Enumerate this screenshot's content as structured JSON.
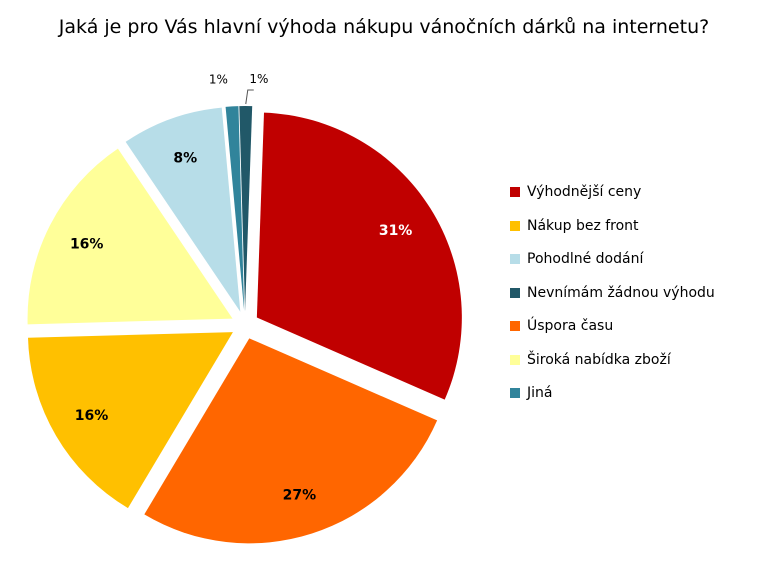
{
  "chart_data": {
    "type": "pie",
    "title": "Jaká je pro Vás hlavní výhoda nákupu vánočních dárků na internetu?",
    "unit": "%",
    "slices": [
      {
        "name": "Výhodnější ceny",
        "value": 31,
        "label": "31%",
        "color": "#C00000"
      },
      {
        "name": "Úspora času",
        "value": 27,
        "label": "27%",
        "color": "#FF6600"
      },
      {
        "name": "Nákup bez front",
        "value": 16,
        "label": "16%",
        "color": "#FFC000"
      },
      {
        "name": "Široká nabídka zboží",
        "value": 16,
        "label": "16%",
        "color": "#FFFF99"
      },
      {
        "name": "Pohodlné dodání",
        "value": 8,
        "label": "8%",
        "color": "#B7DDE8"
      },
      {
        "name": "Jiná",
        "value": 1,
        "label": "1%",
        "color": "#31849B"
      },
      {
        "name": "Nevnímám žádnou výhodu",
        "value": 1,
        "label": "1%",
        "color": "#215868"
      }
    ],
    "legend": {
      "position": "right",
      "order": [
        "Výhodnější ceny",
        "Nákup bez front",
        "Pohodlné dodání",
        "Nevnímám žádnou výhodu",
        "Úspora času",
        "Široká nabídka zboží",
        "Jiná"
      ]
    },
    "exploded": true
  }
}
